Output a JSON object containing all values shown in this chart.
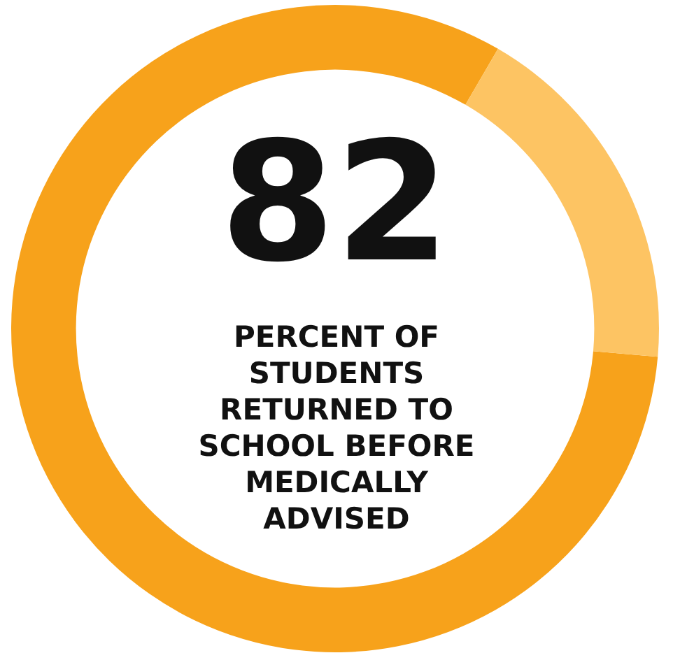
{
  "chart_data": {
    "type": "donut",
    "categories": [
      null,
      null
    ],
    "values": [
      82,
      18
    ],
    "colors": [
      "#f7a21b",
      "#fdc463"
    ],
    "value_labels": [
      "82",
      null
    ],
    "annotations": [
      "PERCENT OF STUDENTS RETURNED TO SCHOOL BEFORE MEDICALLY ADVISED"
    ]
  }
}
